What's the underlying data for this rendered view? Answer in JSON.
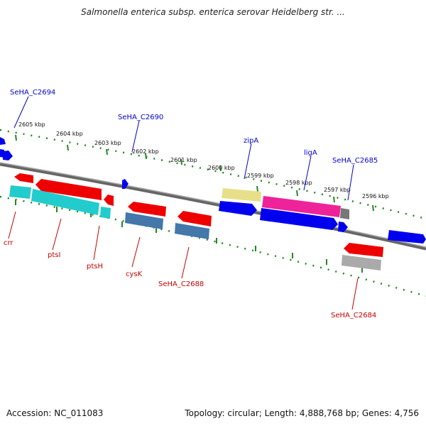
{
  "title": "Salmonella enterica subsp. enterica serovar Heidelberg str. ...",
  "footer": {
    "accession": "Accession: NC_011083",
    "summary": "Topology: circular; Length: 4,888,768 bp; Genes: 4,756"
  },
  "ruler_labels": [
    "2605 kbp",
    "2604 kbp",
    "2603 kbp",
    "2602 kbp",
    "2601 kbp",
    "2600 kbp",
    "2599 kbp",
    "2598 kbp",
    "2597 kbp",
    "2596 kbp"
  ],
  "genes_top": [
    "SeHA_C2694",
    "SeHA_C2690",
    "zipA",
    "ligA",
    "SeHA_C2685"
  ],
  "genes_bottom": [
    "crr",
    "ptsI",
    "ptsH",
    "cysK",
    "SeHA_C2688",
    "SeHA_C2684"
  ],
  "colors": {
    "forward_strand": "#0000ee",
    "reverse_strand": "#ee0000",
    "cds_teal": "#22cccc",
    "cds_steel": "#4477aa",
    "cds_magenta": "#ee2299",
    "cds_khaki": "#e8df8a",
    "cds_gray": "#aaaaaa",
    "backbone": "#777777",
    "ruler": "#228822",
    "top_label": "#0000cc",
    "bottom_label": "#cc0000"
  }
}
